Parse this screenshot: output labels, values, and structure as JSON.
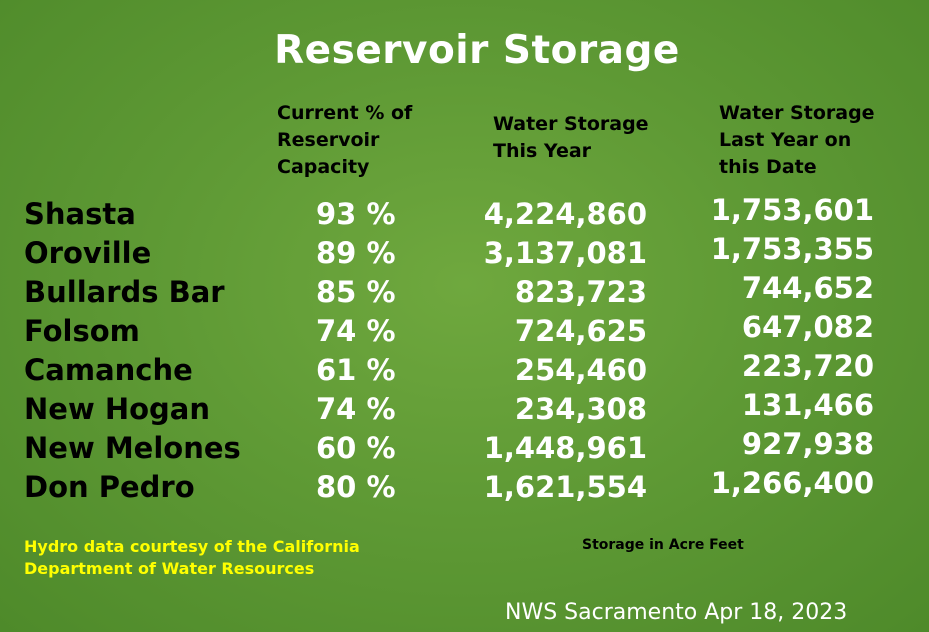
{
  "title": "Reservoir Storage",
  "headers": {
    "capacity": "Current % of\nReservoir\nCapacity",
    "this_year": "Water Storage\nThis Year",
    "last_year": "Water Storage\nLast Year on\nthis Date"
  },
  "reservoirs": [
    {
      "name": "Shasta",
      "percent": "93 %",
      "this_year": "4,224,860",
      "last_year": "1,753,601"
    },
    {
      "name": "Oroville",
      "percent": "89 %",
      "this_year": "3,137,081",
      "last_year": "1,753,355"
    },
    {
      "name": "Bullards Bar",
      "percent": "85 %",
      "this_year": "823,723",
      "last_year": "744,652"
    },
    {
      "name": "Folsom",
      "percent": "74 %",
      "this_year": "724,625",
      "last_year": "647,082"
    },
    {
      "name": "Camanche",
      "percent": "61 %",
      "this_year": "254,460",
      "last_year": "223,720"
    },
    {
      "name": "New Hogan",
      "percent": "74 %",
      "this_year": "234,308",
      "last_year": "131,466"
    },
    {
      "name": "New Melones",
      "percent": "60 %",
      "this_year": "1,448,961",
      "last_year": "927,938"
    },
    {
      "name": "Don Pedro",
      "percent": "80 %",
      "this_year": "1,621,554",
      "last_year": "1,266,400"
    }
  ],
  "credit": "Hydro data courtesy of the  California\nDepartment of Water Resources",
  "units_note": "Storage in Acre Feet",
  "footer": "NWS Sacramento  Apr 18, 2023",
  "colors": {
    "background": "#5f9a35",
    "title": "#ffffff",
    "credit": "#ffff00"
  }
}
